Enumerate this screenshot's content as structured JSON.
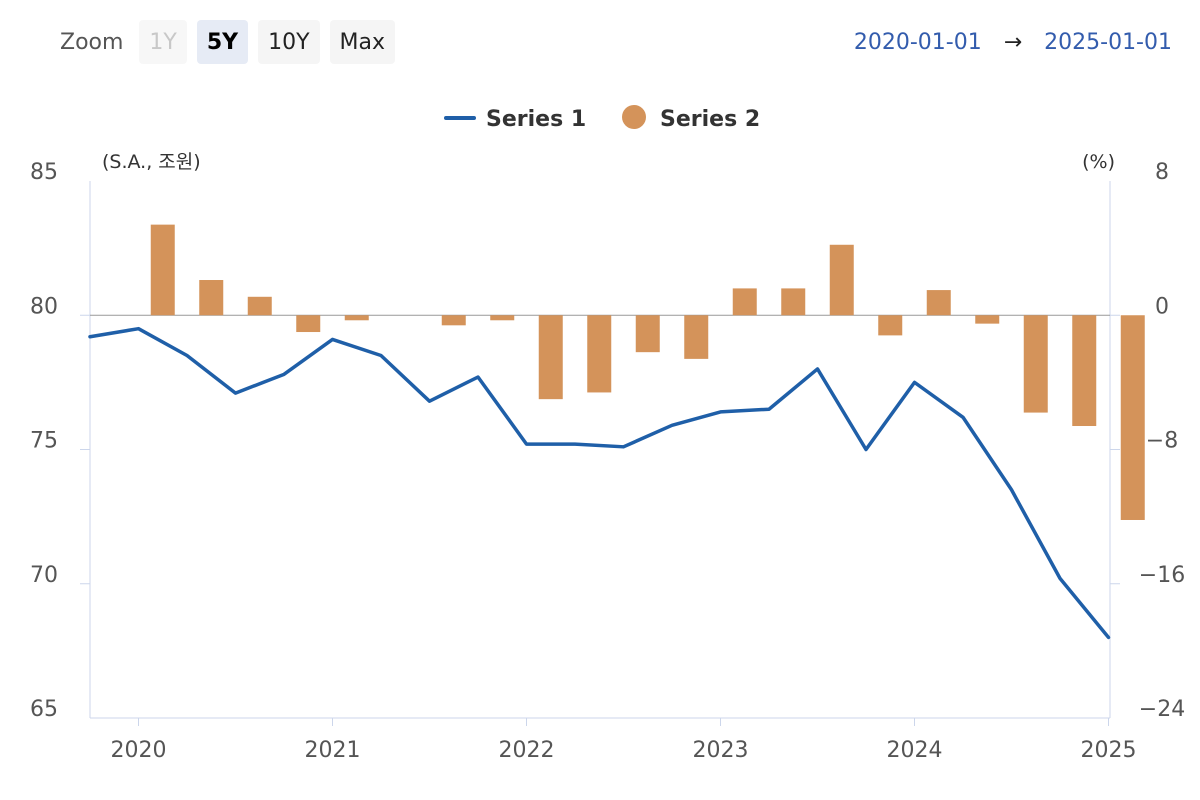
{
  "zoom": {
    "label": "Zoom",
    "buttons": [
      {
        "label": "1Y",
        "state": "disabled"
      },
      {
        "label": "5Y",
        "state": "active"
      },
      {
        "label": "10Y",
        "state": "normal"
      },
      {
        "label": "Max",
        "state": "normal"
      }
    ]
  },
  "range": {
    "from": "2020-01-01",
    "arrow": "→",
    "to": "2025-01-01"
  },
  "colors": {
    "series1": "#1f5fa8",
    "series2": "#d4935a",
    "range_text": "#335cad"
  },
  "chart_data": {
    "type": "line+bar",
    "left_axis_title": "(S.A., 조원)",
    "right_axis_title": "(%)",
    "left_axis": {
      "min": 65,
      "max": 85,
      "ticks": [
        "85",
        "80",
        "75",
        "70",
        "65"
      ]
    },
    "right_axis": {
      "min": -24,
      "max": 8,
      "ticks": [
        "8",
        "0",
        "−8",
        "−16",
        "−24"
      ]
    },
    "x_axis": {
      "ticks": [
        "2020",
        "2021",
        "2022",
        "2023",
        "2024",
        "2025"
      ]
    },
    "legend_position": "top-center",
    "quarters": [
      "2019Q4",
      "2020Q1",
      "2020Q2",
      "2020Q3",
      "2020Q4",
      "2021Q1",
      "2021Q2",
      "2021Q3",
      "2021Q4",
      "2022Q1",
      "2022Q2",
      "2022Q3",
      "2022Q4",
      "2023Q1",
      "2023Q2",
      "2023Q3",
      "2023Q4",
      "2024Q1",
      "2024Q2",
      "2024Q3",
      "2024Q4",
      "2025Q1"
    ],
    "series": [
      {
        "name": "Series 1",
        "type": "line",
        "axis": "left",
        "values": [
          79.2,
          79.5,
          78.5,
          77.1,
          77.8,
          79.1,
          78.5,
          76.8,
          77.7,
          75.2,
          75.2,
          75.1,
          75.9,
          76.4,
          76.5,
          78.0,
          75.0,
          77.5,
          76.2,
          73.5,
          70.2,
          68.0
        ]
      },
      {
        "name": "Series 2",
        "type": "bar",
        "axis": "right",
        "values": [
          null,
          5.4,
          2.1,
          1.1,
          -1.0,
          -0.3,
          null,
          -0.6,
          -0.3,
          -5.0,
          -4.6,
          -2.2,
          -2.6,
          1.6,
          1.6,
          4.2,
          -1.2,
          1.5,
          -0.5,
          -5.8,
          -6.6,
          -12.2
        ]
      }
    ]
  }
}
